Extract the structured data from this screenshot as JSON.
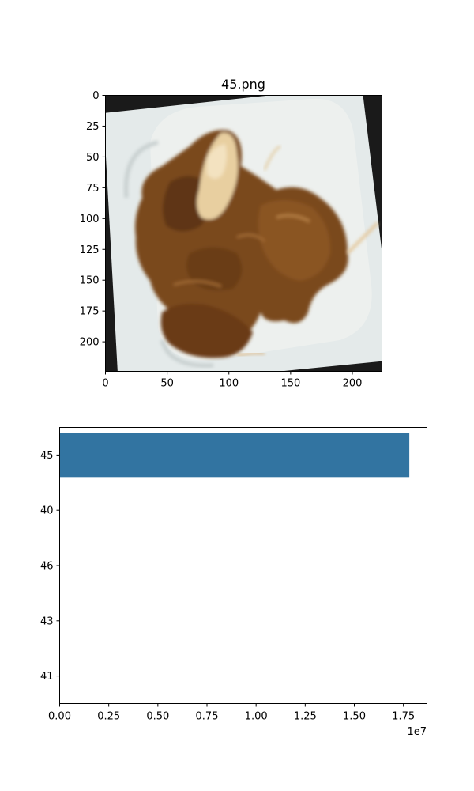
{
  "chart_data": [
    {
      "type": "image",
      "title": "45.png",
      "xlim": [
        0,
        224
      ],
      "ylim": [
        224,
        0
      ],
      "x_ticks": [
        0,
        50,
        100,
        150,
        200
      ],
      "y_ticks": [
        0,
        25,
        50,
        75,
        100,
        125,
        150,
        175,
        200
      ],
      "image_content": "brown stewed meat pieces in a white square dish"
    },
    {
      "type": "bar",
      "orientation": "horizontal",
      "categories": [
        "45",
        "40",
        "46",
        "43",
        "41"
      ],
      "values": [
        17800000,
        0,
        0,
        0,
        0
      ],
      "xlim": [
        0,
        18700000
      ],
      "x_ticks": [
        0,
        2500000,
        5000000,
        7500000,
        10000000,
        12500000,
        15000000,
        17500000
      ],
      "x_tick_labels": [
        "0.00",
        "0.25",
        "0.50",
        "0.75",
        "1.00",
        "1.25",
        "1.50",
        "1.75"
      ],
      "x_offset_label": "1e7",
      "bar_color": "#3274a1",
      "grid": false
    }
  ]
}
